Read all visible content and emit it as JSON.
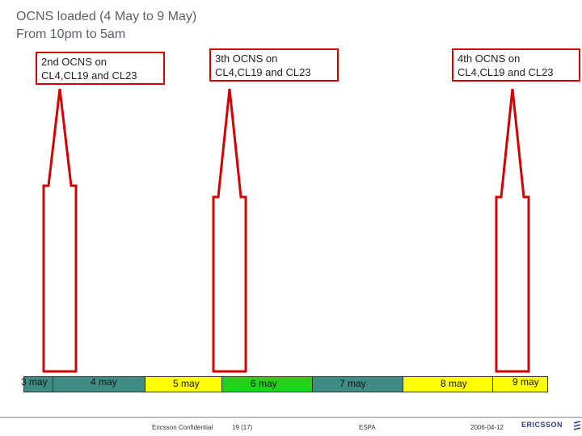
{
  "title": {
    "line1": "OCNS loaded (4 May to 9 May)",
    "line2": "From 10pm to 5am"
  },
  "callouts": [
    {
      "line1": "2nd OCNS on",
      "line2": "CL4,CL19 and CL23"
    },
    {
      "line1": "3th OCNS on",
      "line2": "CL4,CL19 and CL23"
    },
    {
      "line1": "4th OCNS on",
      "line2": "CL4,CL19 and CL23"
    }
  ],
  "timeline": {
    "days": [
      "3 may",
      "4 may",
      "5 may",
      "6 may",
      "7 may",
      "8 may",
      "9 may"
    ],
    "colors": {
      "teal": "#3f8c84",
      "yellow": "#ffff00",
      "green": "#22d11a",
      "arrow": "#d40000"
    }
  },
  "footer": {
    "confidential": "Ericsson Confidential",
    "page": "19 (17)",
    "org": "ESPA",
    "date": "2006-04-12",
    "logo": "ERICSSON"
  }
}
